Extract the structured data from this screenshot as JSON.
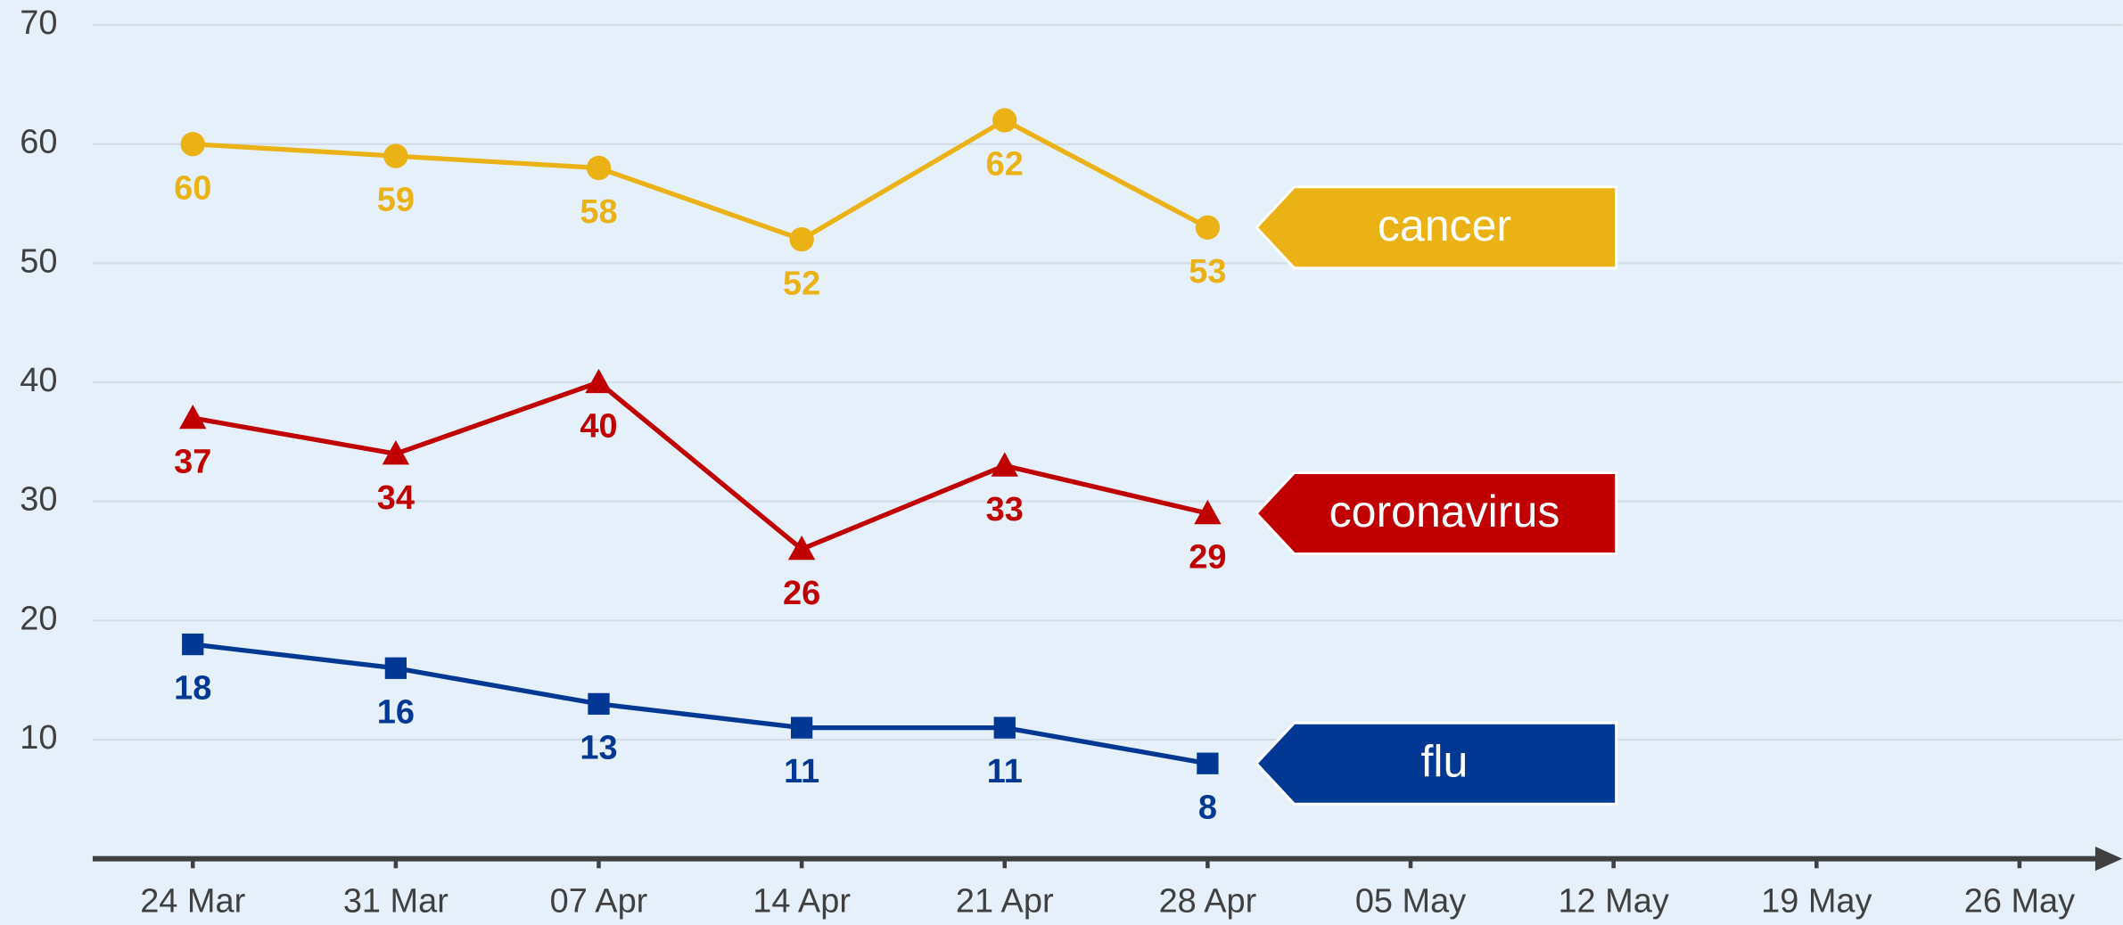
{
  "chart_data": {
    "type": "line",
    "categories": [
      "24 Mar",
      "31 Mar",
      "07 Apr",
      "14 Apr",
      "21 Apr",
      "28 Apr",
      "05 May",
      "12 May",
      "19 May",
      "26 May"
    ],
    "series": [
      {
        "name": "cancer",
        "color": "#eab215",
        "marker": "circle",
        "values": [
          60,
          59,
          58,
          52,
          62,
          53,
          null,
          null,
          null,
          null
        ]
      },
      {
        "name": "coronavirus",
        "color": "#c00000",
        "marker": "triangle",
        "values": [
          37,
          34,
          40,
          26,
          33,
          29,
          null,
          null,
          null,
          null
        ]
      },
      {
        "name": "flu",
        "color": "#003893",
        "marker": "square",
        "values": [
          18,
          16,
          13,
          11,
          11,
          8,
          null,
          null,
          null,
          null
        ]
      }
    ],
    "ylim": [
      0,
      70
    ],
    "yticks": [
      10,
      20,
      30,
      40,
      50,
      60,
      70
    ],
    "grid": true
  }
}
